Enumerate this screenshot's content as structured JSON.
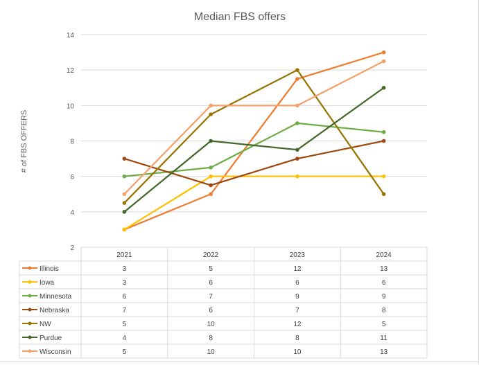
{
  "chart_data": {
    "type": "line",
    "title": "Median FBS offers",
    "xlabel": "",
    "ylabel": "# of FBS OFFERS",
    "ylim": [
      2,
      14
    ],
    "yticks": [
      2,
      4,
      6,
      8,
      10,
      12,
      14
    ],
    "categories": [
      "2021",
      "2022",
      "2023",
      "2024"
    ],
    "grid": true,
    "legend": "data-table-left",
    "series": [
      {
        "name": "Illinois",
        "color": "#ed7d31",
        "values": [
          3,
          5,
          11.5,
          13
        ],
        "table": [
          "3",
          "5",
          "12",
          "13"
        ]
      },
      {
        "name": "Iowa",
        "color": "#ffc000",
        "values": [
          3,
          6,
          6,
          6
        ],
        "table": [
          "3",
          "6",
          "6",
          "6"
        ]
      },
      {
        "name": "Minnesota",
        "color": "#70ad47",
        "values": [
          6,
          6.5,
          9,
          8.5
        ],
        "table": [
          "6",
          "7",
          "9",
          "9"
        ]
      },
      {
        "name": "Nebraska",
        "color": "#9e480e",
        "values": [
          7,
          5.5,
          7,
          8
        ],
        "table": [
          "7",
          "6",
          "7",
          "8"
        ]
      },
      {
        "name": "NW",
        "color": "#997300",
        "values": [
          4.5,
          9.5,
          12,
          5
        ],
        "table": [
          "5",
          "10",
          "12",
          "5"
        ]
      },
      {
        "name": "Purdue",
        "color": "#43682b",
        "values": [
          4,
          8,
          7.5,
          11
        ],
        "table": [
          "4",
          "8",
          "8",
          "11"
        ]
      },
      {
        "name": "Wisconsin",
        "color": "#f4a06a",
        "values": [
          5,
          10,
          10,
          12.5
        ],
        "table": [
          "5",
          "10",
          "10",
          "13"
        ]
      }
    ]
  }
}
